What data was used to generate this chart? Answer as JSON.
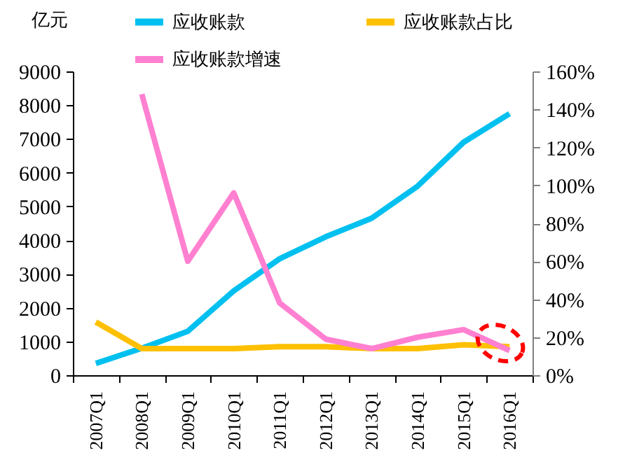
{
  "chart_data": {
    "type": "line",
    "ylabel": "亿元",
    "categories": [
      "2007Q1",
      "2008Q1",
      "2009Q1",
      "2010Q1",
      "2011Q1",
      "2012Q1",
      "2013Q1",
      "2014Q1",
      "2015Q1",
      "2016Q1"
    ],
    "series": [
      {
        "name": "应收账款",
        "color": "#00c0f0",
        "values": [
          350,
          800,
          1300,
          2500,
          3450,
          4100,
          4650,
          5600,
          6900,
          7750
        ]
      },
      {
        "name": "应收账款占比",
        "color": "#ffc000",
        "axis": "y2",
        "values": [
          28,
          14,
          14,
          14,
          15,
          15,
          14,
          14,
          16,
          15
        ]
      },
      {
        "name": "应收账款增速",
        "color": "#ff80d0",
        "axis": "y2",
        "values": [
          null,
          148,
          60,
          96,
          38,
          19,
          14,
          20,
          24,
          13
        ]
      }
    ],
    "ylim": [
      0,
      9000
    ],
    "yticks": [
      0,
      1000,
      2000,
      3000,
      4000,
      5000,
      6000,
      7000,
      8000,
      9000
    ],
    "y2lim": [
      0,
      160
    ],
    "y2ticks": [
      {
        "value": 0,
        "label": "0%"
      },
      {
        "value": 20,
        "label": "20%"
      },
      {
        "value": 40,
        "label": "40%"
      },
      {
        "value": 60,
        "label": "60%"
      },
      {
        "value": 80,
        "label": "80%"
      },
      {
        "value": 100,
        "label": "100%"
      },
      {
        "value": 120,
        "label": "120%"
      },
      {
        "value": 140,
        "label": "140%"
      },
      {
        "value": 160,
        "label": "160%"
      }
    ],
    "grid": false,
    "legend": "top",
    "marker": "none",
    "line_style": "solid"
  }
}
